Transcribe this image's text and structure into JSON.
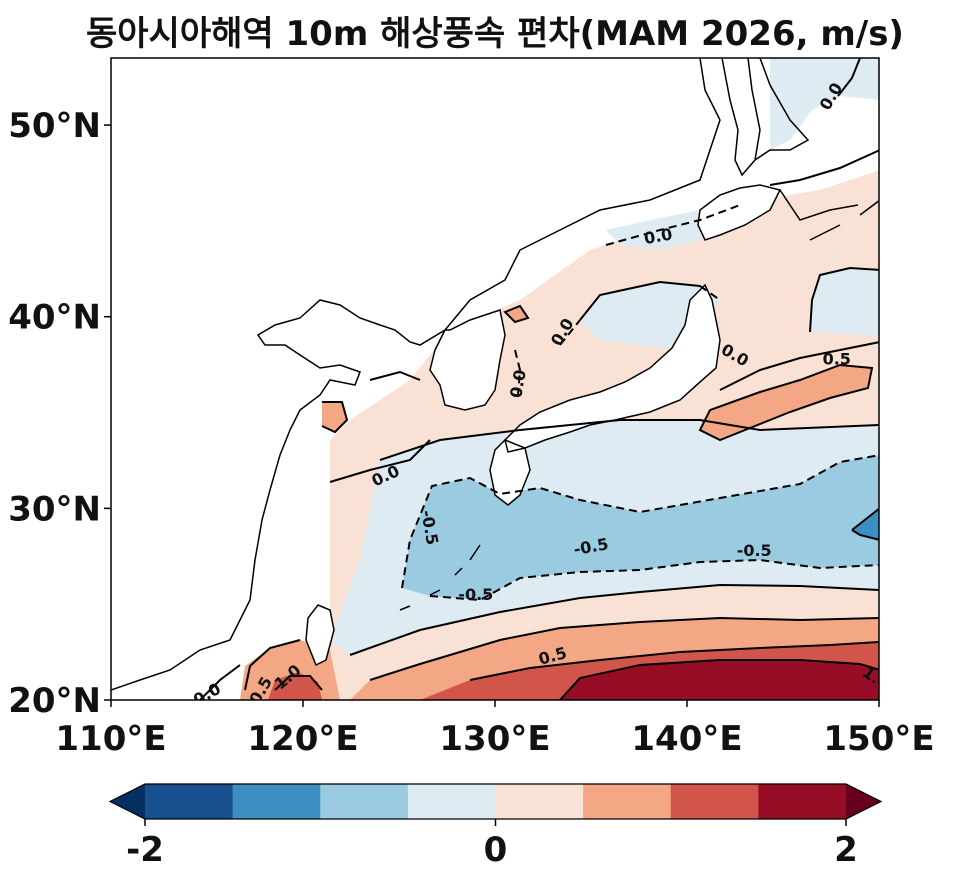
{
  "title": "동아시아해역 10m 해상풍속 편차(MAM 2026, m/s)",
  "map": {
    "projection": "PlateCarree",
    "lon_range": [
      110,
      150
    ],
    "lat_range": [
      20,
      53.5
    ],
    "x_ticks": [
      {
        "value": 110,
        "label": "110°E"
      },
      {
        "value": 120,
        "label": "120°E"
      },
      {
        "value": 130,
        "label": "130°E"
      },
      {
        "value": 140,
        "label": "140°E"
      },
      {
        "value": 150,
        "label": "150°E"
      }
    ],
    "y_ticks": [
      {
        "value": 20,
        "label": "20°N"
      },
      {
        "value": 30,
        "label": "30°N"
      },
      {
        "value": 40,
        "label": "40°N"
      },
      {
        "value": 50,
        "label": "50°N"
      }
    ],
    "contour_labels": [
      {
        "text": "0.0",
        "lon": 147.5,
        "lat": 51.5,
        "rot": -60
      },
      {
        "text": "0.0",
        "lon": 138.5,
        "lat": 44.2,
        "rot": -10
      },
      {
        "text": "0.0",
        "lon": 133.5,
        "lat": 39.2,
        "rot": -60
      },
      {
        "text": "0.0",
        "lon": 142.5,
        "lat": 38.0,
        "rot": 30
      },
      {
        "text": "0.5",
        "lon": 147.8,
        "lat": 37.8,
        "rot": 0
      },
      {
        "text": "0.0",
        "lon": 131.2,
        "lat": 36.5,
        "rot": -80
      },
      {
        "text": "0.0",
        "lon": 124.3,
        "lat": 31.7,
        "rot": -25
      },
      {
        "text": "-0.5",
        "lon": 126.6,
        "lat": 29.0,
        "rot": 80
      },
      {
        "text": "-0.5",
        "lon": 135.0,
        "lat": 28.0,
        "rot": -10
      },
      {
        "text": "-0.5",
        "lon": 143.5,
        "lat": 27.8,
        "rot": 0
      },
      {
        "text": "-0.5",
        "lon": 129.0,
        "lat": 25.5,
        "rot": 0
      },
      {
        "text": "0.5",
        "lon": 133.0,
        "lat": 22.3,
        "rot": -15
      },
      {
        "text": "1.0",
        "lon": 119.2,
        "lat": 21.2,
        "rot": -40
      },
      {
        "text": "0.5",
        "lon": 117.8,
        "lat": 20.5,
        "rot": -60
      },
      {
        "text": "0.0",
        "lon": 115.0,
        "lat": 20.3,
        "rot": -30
      },
      {
        "text": "1.",
        "lon": 149.6,
        "lat": 21.3,
        "rot": 35
      }
    ]
  },
  "colorbar": {
    "levels": [
      -2,
      -1.5,
      -1,
      -0.5,
      0,
      0.5,
      1,
      1.5,
      2
    ],
    "colors": [
      "#053061",
      "#18508f",
      "#3d8ec2",
      "#9acbe1",
      "#dfebf3",
      "#fae1d6",
      "#f3a784",
      "#d1554b",
      "#980d26",
      "#67001f"
    ],
    "extend": "both",
    "tick_labels": [
      {
        "value": -2,
        "label": "-2"
      },
      {
        "value": 0,
        "label": "0"
      },
      {
        "value": 2,
        "label": "2"
      }
    ]
  }
}
